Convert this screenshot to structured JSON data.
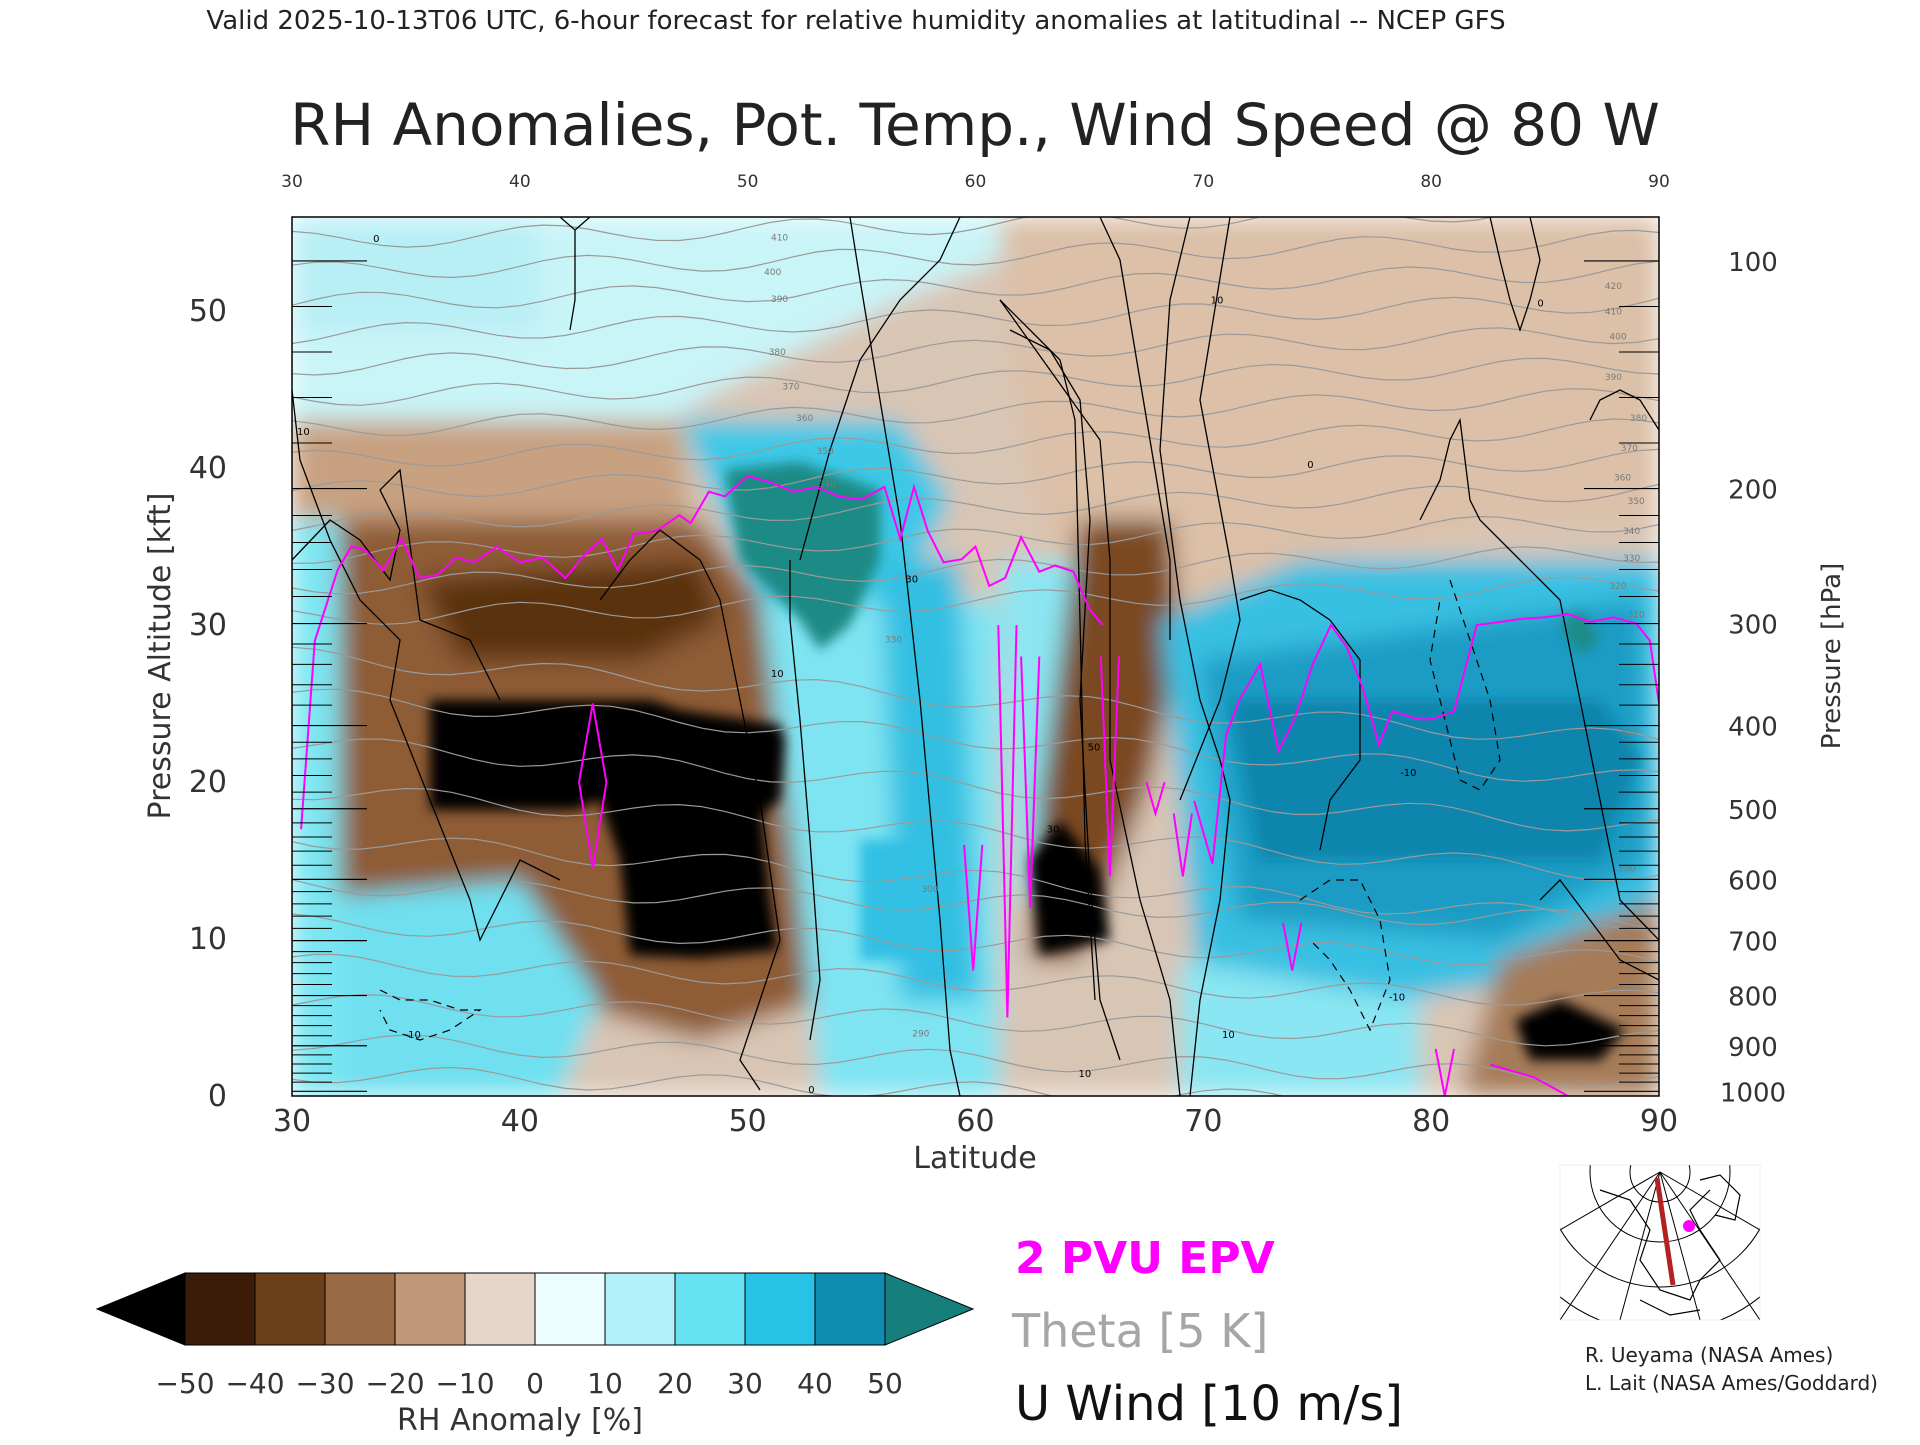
{
  "header": {
    "valid_line": "Valid 2025-10-13T06 UTC, 6-hour forecast for relative humidity anomalies at latitudinal -- NCEP GFS"
  },
  "chart_data": {
    "type": "heatmap",
    "title": "RH Anomalies, Pot. Temp., Wind Speed @ 80 W",
    "xlabel": "Latitude",
    "ylabel": "Pressure Altitude [kft]",
    "y2label": "Pressure [hPa]",
    "xlim": [
      30,
      90
    ],
    "ylim": [
      0,
      56
    ],
    "x_ticks": [
      30,
      40,
      50,
      60,
      70,
      80,
      90
    ],
    "x_tick_labels": [
      "30",
      "40",
      "50",
      "60",
      "70",
      "80",
      "90"
    ],
    "y_ticks": [
      0,
      10,
      20,
      30,
      40,
      50
    ],
    "y_tick_labels": [
      "0",
      "10",
      "20",
      "30",
      "40",
      "50"
    ],
    "pressure_ticks": [
      {
        "label": "100",
        "kft": 53.2
      },
      {
        "label": "200",
        "kft": 38.7
      },
      {
        "label": "300",
        "kft": 30.1
      },
      {
        "label": "400",
        "kft": 23.6
      },
      {
        "label": "500",
        "kft": 18.3
      },
      {
        "label": "600",
        "kft": 13.8
      },
      {
        "label": "700",
        "kft": 9.9
      },
      {
        "label": "800",
        "kft": 6.4
      },
      {
        "label": "900",
        "kft": 3.2
      },
      {
        "label": "1000",
        "kft": 0.3
      }
    ],
    "theta_labels": [
      {
        "label": "410",
        "x": 51.4,
        "y": 54.5
      },
      {
        "label": "400",
        "x": 51.1,
        "y": 52.3
      },
      {
        "label": "390",
        "x": 51.4,
        "y": 50.6
      },
      {
        "label": "380",
        "x": 51.3,
        "y": 47.2
      },
      {
        "label": "370",
        "x": 51.9,
        "y": 45.0
      },
      {
        "label": "360",
        "x": 52.5,
        "y": 43.0
      },
      {
        "label": "350",
        "x": 53.4,
        "y": 40.9
      },
      {
        "label": "340",
        "x": 53.5,
        "y": 38.8
      },
      {
        "label": "330",
        "x": 56.4,
        "y": 28.9
      },
      {
        "label": "300",
        "x": 58.0,
        "y": 13.0
      },
      {
        "label": "290",
        "x": 57.6,
        "y": 3.8
      },
      {
        "label": "420",
        "x": 88.0,
        "y": 51.4
      },
      {
        "label": "410",
        "x": 88.0,
        "y": 49.8
      },
      {
        "label": "400",
        "x": 88.2,
        "y": 48.2
      },
      {
        "label": "390",
        "x": 88.0,
        "y": 45.6
      },
      {
        "label": "380",
        "x": 89.1,
        "y": 43.0
      },
      {
        "label": "370",
        "x": 88.7,
        "y": 41.1
      },
      {
        "label": "360",
        "x": 88.4,
        "y": 39.2
      },
      {
        "label": "350",
        "x": 89.0,
        "y": 37.7
      },
      {
        "label": "340",
        "x": 88.8,
        "y": 35.8
      },
      {
        "label": "330",
        "x": 88.8,
        "y": 34.1
      },
      {
        "label": "320",
        "x": 88.2,
        "y": 32.3
      },
      {
        "label": "310",
        "x": 89.0,
        "y": 30.5
      },
      {
        "label": "300",
        "x": 88.7,
        "y": 23.0
      },
      {
        "label": "290",
        "x": 88.6,
        "y": 14.3
      }
    ],
    "wind_labels": [
      {
        "label": "0",
        "x": 33.7,
        "y": 54.4
      },
      {
        "label": "0",
        "x": 74.7,
        "y": 40.0
      },
      {
        "label": "0",
        "x": 52.8,
        "y": 0.2
      },
      {
        "label": "0",
        "x": 84.8,
        "y": 50.3
      },
      {
        "label": "10",
        "x": 70.6,
        "y": 50.5
      },
      {
        "label": "10",
        "x": 30.5,
        "y": 42.1
      },
      {
        "label": "10",
        "x": 51.3,
        "y": 26.7
      },
      {
        "label": "10",
        "x": 71.1,
        "y": 3.7
      },
      {
        "label": "10",
        "x": 64.8,
        "y": 1.2
      },
      {
        "label": "30",
        "x": 57.2,
        "y": 32.7
      },
      {
        "label": "50",
        "x": 65.2,
        "y": 22.0
      },
      {
        "label": "30",
        "x": 63.4,
        "y": 16.8
      },
      {
        "label": "-10",
        "x": 35.3,
        "y": 3.7
      },
      {
        "label": "-10",
        "x": 78.5,
        "y": 6.1
      },
      {
        "label": "-10",
        "x": 79.0,
        "y": 20.4
      }
    ],
    "colorbar": {
      "label": "RH Anomaly [%]",
      "ticks": [
        "-50",
        "-40",
        "-30",
        "-20",
        "-10",
        "0",
        "10",
        "20",
        "30",
        "40",
        "50"
      ],
      "colors": [
        "#000000",
        "#3b1c08",
        "#6b3f1a",
        "#9a6a44",
        "#c09878",
        "#e6d6c8",
        "#ecfdff",
        "#b2f1fa",
        "#66e2f3",
        "#27c3e6",
        "#0e8cb2",
        "#167f7c"
      ]
    },
    "legend": [
      {
        "label": "2 PVU EPV",
        "color": "#ff00ff"
      },
      {
        "label": "Theta [5 K]",
        "color": "#a6a6a6"
      },
      {
        "label": "U Wind [10 m/s]",
        "color": "#000000"
      }
    ],
    "epv_2pvu_line": {
      "lat": [
        30.4,
        31.0,
        32.0,
        32.6,
        33.2,
        34.0,
        34.8,
        35.6,
        36.4,
        37.2,
        38.0,
        39.0,
        40.0,
        41.0,
        42.0,
        42.8,
        43.6,
        44.3,
        45.0,
        46.0,
        47.0,
        47.5,
        48.3,
        49.0,
        50.0,
        51.0,
        52.0,
        53.0,
        54.0,
        55.0,
        56.0,
        56.7,
        57.3,
        57.9,
        58.6,
        59.4,
        60.0,
        60.6,
        61.3,
        62.0,
        62.8,
        63.5,
        64.3,
        65.0,
        65.6
      ],
      "kft": [
        17.0,
        29.0,
        33.5,
        35.0,
        34.8,
        33.5,
        35.5,
        33.0,
        33.2,
        34.3,
        34.0,
        35.0,
        34.0,
        34.3,
        33.0,
        34.4,
        35.5,
        33.5,
        35.8,
        36.0,
        37.0,
        36.5,
        38.5,
        38.2,
        39.5,
        39.1,
        38.5,
        38.8,
        38.2,
        38.0,
        38.8,
        35.5,
        38.8,
        36.0,
        34.0,
        34.2,
        35.0,
        32.5,
        33.0,
        35.6,
        33.4,
        33.8,
        33.4,
        31.0,
        30.0
      ],
      "lat_east": [
        69.6,
        70.4,
        71.0,
        71.6,
        72.5,
        73.3,
        74.0,
        74.8,
        75.6,
        76.3,
        77.0,
        77.7,
        78.3,
        79.0,
        79.5,
        80.0,
        81.0,
        82.0,
        83.0,
        84.0,
        85.0,
        86.0,
        87.0,
        88.0,
        89.0,
        89.6,
        90.0
      ],
      "kft_east": [
        18.8,
        14.8,
        23.0,
        25.3,
        27.5,
        22.0,
        24.0,
        27.5,
        30.0,
        28.6,
        26.0,
        22.4,
        24.5,
        24.2,
        24.0,
        24.0,
        24.5,
        30.0,
        30.2,
        30.4,
        30.5,
        30.7,
        30.2,
        30.5,
        30.1,
        29.0,
        25.0
      ]
    }
  },
  "map_inset": {
    "marker_color": "#ff00ff",
    "section_line_color": "#b22222"
  },
  "credits": {
    "line1": "R. Ueyama (NASA Ames)",
    "line2": "L. Lait (NASA Ames/Goddard)"
  }
}
